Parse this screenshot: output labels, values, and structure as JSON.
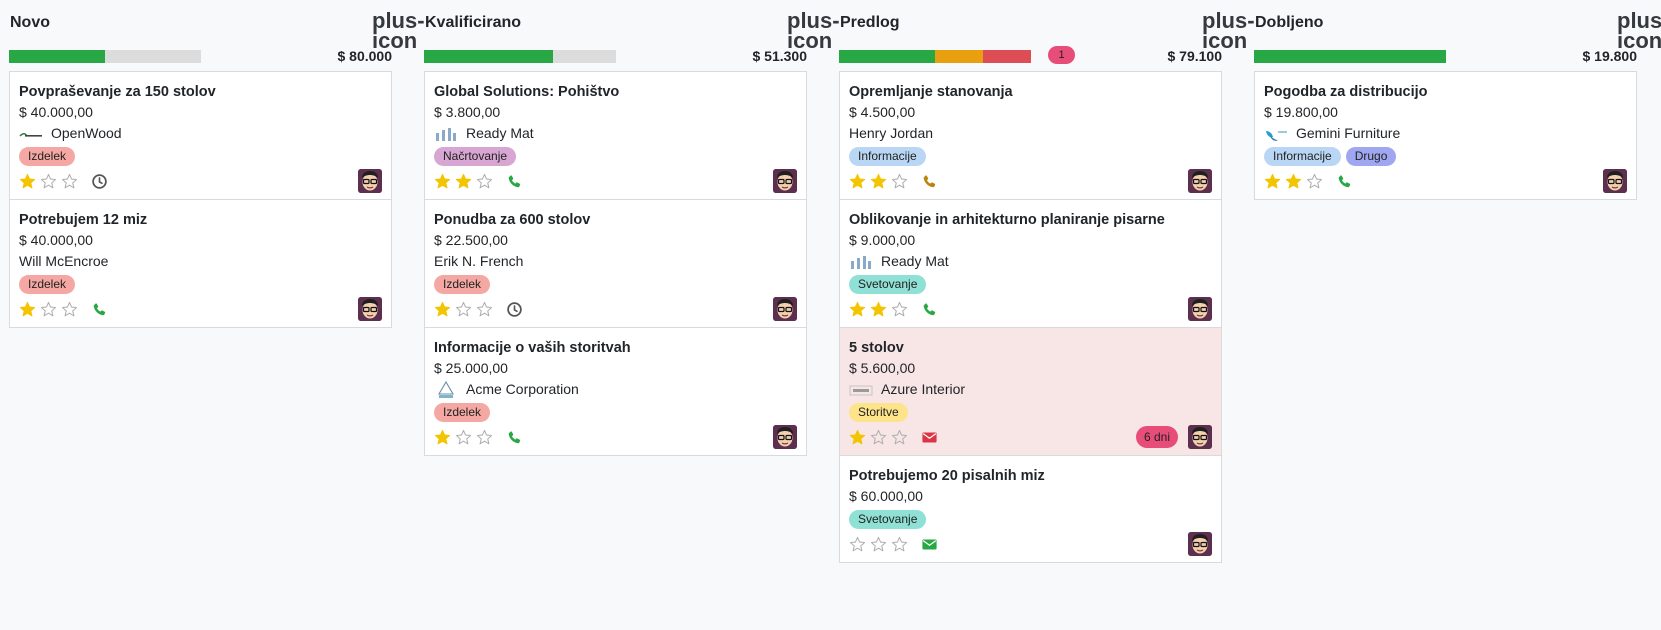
{
  "columns": [
    {
      "title": "Novo",
      "total": "$ 80.000",
      "add_icon": "plus-icon",
      "progress": [
        {
          "color": "#28a745",
          "fraction": 0.5
        }
      ],
      "cards": [
        {
          "title": "Povpraševanje za 150 stolov",
          "amount": "$ 40.000,00",
          "partner": "OpenWood",
          "logo": "openwood-logo",
          "tags": [
            {
              "label": "Izdelek",
              "color": "#f4a7a3"
            }
          ],
          "stars": 1,
          "activity": "clock-icon",
          "activity_color": "#555555"
        },
        {
          "title": "Potrebujem 12 miz",
          "amount": "$ 40.000,00",
          "partner": "Will McEncroe",
          "logo": null,
          "tags": [
            {
              "label": "Izdelek",
              "color": "#f4a7a3"
            }
          ],
          "stars": 1,
          "activity": "phone-icon",
          "activity_color": "#28a745"
        }
      ]
    },
    {
      "title": "Kvalificirano",
      "total": "$ 51.300",
      "add_icon": "plus-icon",
      "progress": [
        {
          "color": "#28a745",
          "fraction": 0.67
        }
      ],
      "cards": [
        {
          "title": "Global Solutions: Pohištvo",
          "amount": "$ 3.800,00",
          "partner": "Ready Mat",
          "logo": "readymat-logo",
          "tags": [
            {
              "label": "Načrtovanje",
              "color": "#d7a6d3"
            }
          ],
          "stars": 2,
          "activity": "phone-icon",
          "activity_color": "#28a745"
        },
        {
          "title": "Ponudba za 600 stolov",
          "amount": "$ 22.500,00",
          "partner": "Erik N. French",
          "logo": null,
          "tags": [
            {
              "label": "Izdelek",
              "color": "#f4a7a3"
            }
          ],
          "stars": 1,
          "activity": "clock-icon",
          "activity_color": "#555555"
        },
        {
          "title": "Informacije o vaših storitvah",
          "amount": "$ 25.000,00",
          "partner": "Acme Corporation",
          "logo": "acme-logo",
          "tags": [
            {
              "label": "Izdelek",
              "color": "#f4a7a3"
            }
          ],
          "stars": 1,
          "activity": "phone-icon",
          "activity_color": "#28a745"
        }
      ]
    },
    {
      "title": "Predlog",
      "total": "$ 79.100",
      "add_icon": "plus-icon",
      "overdue_count": "1",
      "progress": [
        {
          "color": "#28a745",
          "fraction": 0.5
        },
        {
          "color": "#e8a010",
          "fraction": 0.25
        },
        {
          "color": "#dc4d56",
          "fraction": 0.25
        }
      ],
      "cards": [
        {
          "title": "Opremljanje stanovanja",
          "amount": "$ 4.500,00",
          "partner": "Henry Jordan",
          "logo": null,
          "tags": [
            {
              "label": "Informacije",
              "color": "#b9d7f5"
            }
          ],
          "stars": 2,
          "activity": "phone-icon",
          "activity_color": "#b8860b"
        },
        {
          "title": "Oblikovanje in arhitekturno planiranje pisarne",
          "amount": "$ 9.000,00",
          "partner": "Ready Mat",
          "logo": "readymat-logo",
          "tags": [
            {
              "label": "Svetovanje",
              "color": "#8fe0d5"
            }
          ],
          "stars": 2,
          "activity": "phone-icon",
          "activity_color": "#28a745"
        },
        {
          "title": "5 stolov",
          "amount": "$ 5.600,00",
          "partner": "Azure Interior",
          "logo": "azure-logo",
          "tags": [
            {
              "label": "Storitve",
              "color": "#fde38a"
            }
          ],
          "stars": 1,
          "activity": "envelope-icon",
          "activity_color": "#dc3545",
          "danger": true,
          "deadline": "6 dni"
        },
        {
          "title": "Potrebujemo 20 pisalnih miz",
          "amount": "$ 60.000,00",
          "partner": "",
          "logo": null,
          "tags": [
            {
              "label": "Svetovanje",
              "color": "#8fe0d5"
            }
          ],
          "stars": 0,
          "activity": "envelope-icon",
          "activity_color": "#28a745"
        }
      ]
    },
    {
      "title": "Dobljeno",
      "total": "$ 19.800",
      "add_icon": "plus-icon",
      "progress": [
        {
          "color": "#28a745",
          "fraction": 1.0
        }
      ],
      "cards": [
        {
          "title": "Pogodba za distribucijo",
          "amount": "$ 19.800,00",
          "partner": "Gemini Furniture",
          "logo": "gemini-logo",
          "tags": [
            {
              "label": "Informacije",
              "color": "#b9d7f5"
            },
            {
              "label": "Drugo",
              "color": "#9ea7f0"
            }
          ],
          "stars": 2,
          "activity": "phone-icon",
          "activity_color": "#28a745"
        }
      ]
    }
  ]
}
